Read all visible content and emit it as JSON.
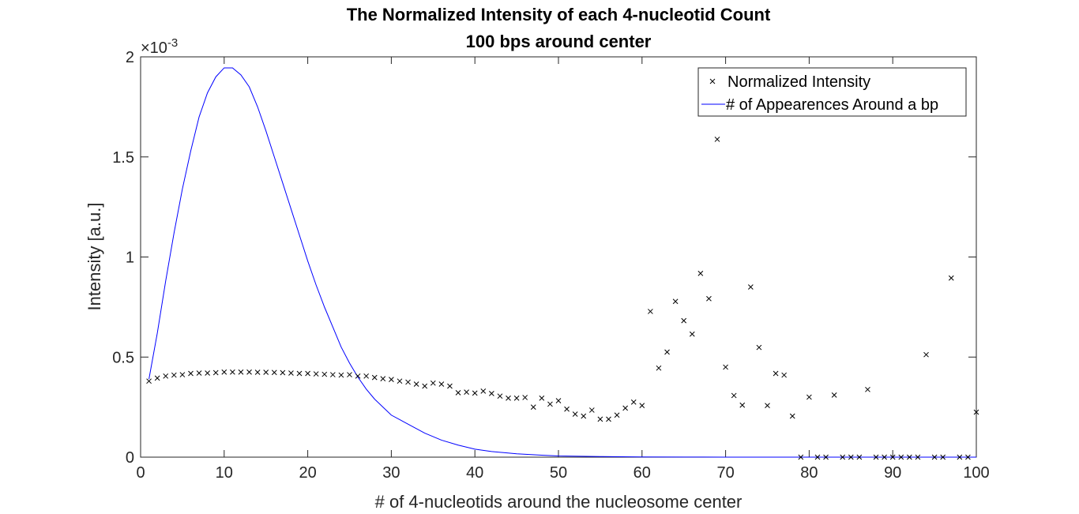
{
  "chart_data": {
    "type": "scatter",
    "title": [
      "The Normalized Intensity of each 4-nucleotid Count",
      "100 bps around center"
    ],
    "xlabel": "# of 4-nucleotids around the nucleosome center",
    "ylabel": "Intensity [a.u.]",
    "y_exponent_label": "×10",
    "y_exponent_power": "-3",
    "xlim": [
      0,
      100
    ],
    "ylim": [
      0,
      0.002
    ],
    "x_ticks": [
      0,
      10,
      20,
      30,
      40,
      50,
      60,
      70,
      80,
      90,
      100
    ],
    "x_tick_labels": [
      "0",
      "10",
      "20",
      "30",
      "40",
      "50",
      "60",
      "70",
      "80",
      "90",
      "100"
    ],
    "y_ticks": [
      0,
      0.0005,
      0.001,
      0.0015,
      0.002
    ],
    "y_tick_labels": [
      "0",
      "0.5",
      "1",
      "1.5",
      "2"
    ],
    "grid": false,
    "legend_position": "top-right",
    "series": [
      {
        "name": "Normalized Intensity",
        "type": "scatter",
        "marker": "x",
        "color": "#000000",
        "points": [
          [
            1,
            0.00038
          ],
          [
            2,
            0.000395
          ],
          [
            3,
            0.000405
          ],
          [
            4,
            0.00041
          ],
          [
            5,
            0.000412
          ],
          [
            6,
            0.000418
          ],
          [
            7,
            0.00042
          ],
          [
            8,
            0.00042
          ],
          [
            9,
            0.000422
          ],
          [
            10,
            0.000425
          ],
          [
            11,
            0.000425
          ],
          [
            12,
            0.000425
          ],
          [
            13,
            0.000425
          ],
          [
            14,
            0.000424
          ],
          [
            15,
            0.000424
          ],
          [
            16,
            0.000423
          ],
          [
            17,
            0.000422
          ],
          [
            18,
            0.00042
          ],
          [
            19,
            0.000418
          ],
          [
            20,
            0.000418
          ],
          [
            21,
            0.000416
          ],
          [
            22,
            0.000414
          ],
          [
            23,
            0.000412
          ],
          [
            24,
            0.00041
          ],
          [
            25,
            0.000412
          ],
          [
            26,
            0.000405
          ],
          [
            27,
            0.000405
          ],
          [
            28,
            0.000398
          ],
          [
            29,
            0.000392
          ],
          [
            30,
            0.000388
          ],
          [
            31,
            0.00038
          ],
          [
            32,
            0.000375
          ],
          [
            33,
            0.000365
          ],
          [
            34,
            0.000355
          ],
          [
            35,
            0.00037
          ],
          [
            36,
            0.000365
          ],
          [
            37,
            0.000355
          ],
          [
            38,
            0.000322
          ],
          [
            39,
            0.000325
          ],
          [
            40,
            0.00032
          ],
          [
            41,
            0.00033
          ],
          [
            42,
            0.000318
          ],
          [
            43,
            0.000305
          ],
          [
            44,
            0.000295
          ],
          [
            45,
            0.000295
          ],
          [
            46,
            0.000298
          ],
          [
            47,
            0.00025
          ],
          [
            48,
            0.000295
          ],
          [
            49,
            0.000265
          ],
          [
            50,
            0.000282
          ],
          [
            51,
            0.00024
          ],
          [
            52,
            0.000215
          ],
          [
            53,
            0.000205
          ],
          [
            54,
            0.000235
          ],
          [
            55,
            0.00019
          ],
          [
            56,
            0.00019
          ],
          [
            57,
            0.00021
          ],
          [
            58,
            0.000245
          ],
          [
            59,
            0.000275
          ],
          [
            60,
            0.000258
          ],
          [
            61,
            0.000728
          ],
          [
            62,
            0.000445
          ],
          [
            63,
            0.000525
          ],
          [
            64,
            0.000778
          ],
          [
            65,
            0.000682
          ],
          [
            66,
            0.000615
          ],
          [
            67,
            0.000918
          ],
          [
            68,
            0.000792
          ],
          [
            69,
            0.001588
          ],
          [
            70,
            0.00045
          ],
          [
            71,
            0.000308
          ],
          [
            72,
            0.00026
          ],
          [
            73,
            0.00085
          ],
          [
            74,
            0.000548
          ],
          [
            75,
            0.000258
          ],
          [
            76,
            0.000418
          ],
          [
            77,
            0.00041
          ],
          [
            78,
            0.000205
          ],
          [
            79,
            0
          ],
          [
            80,
            0.0003
          ],
          [
            81,
            0
          ],
          [
            82,
            0
          ],
          [
            83,
            0.00031
          ],
          [
            84,
            0
          ],
          [
            85,
            0
          ],
          [
            86,
            0
          ],
          [
            87,
            0.000338
          ],
          [
            88,
            0
          ],
          [
            89,
            0
          ],
          [
            90,
            0
          ],
          [
            91,
            0
          ],
          [
            92,
            0
          ],
          [
            93,
            0
          ],
          [
            94,
            0.000512
          ],
          [
            95,
            0
          ],
          [
            96,
            0
          ],
          [
            97,
            0.000895
          ],
          [
            98,
            0
          ],
          [
            99,
            0
          ],
          [
            100,
            0.000225
          ]
        ]
      },
      {
        "name": "# of Appearences Around a bp",
        "type": "line",
        "color": "#0000ff",
        "points": [
          [
            1,
            0.00039
          ],
          [
            2,
            0.00062
          ],
          [
            3,
            0.00088
          ],
          [
            4,
            0.00112
          ],
          [
            5,
            0.00134
          ],
          [
            6,
            0.00153
          ],
          [
            7,
            0.0017
          ],
          [
            8,
            0.00182
          ],
          [
            9,
            0.0019
          ],
          [
            10,
            0.001945
          ],
          [
            11,
            0.001945
          ],
          [
            12,
            0.00191
          ],
          [
            13,
            0.00185
          ],
          [
            14,
            0.00175
          ],
          [
            15,
            0.00163
          ],
          [
            16,
            0.0015
          ],
          [
            17,
            0.00137
          ],
          [
            18,
            0.00124
          ],
          [
            19,
            0.00111
          ],
          [
            20,
            0.00098
          ],
          [
            21,
            0.00086
          ],
          [
            22,
            0.00075
          ],
          [
            23,
            0.00065
          ],
          [
            24,
            0.00055
          ],
          [
            25,
            0.00047
          ],
          [
            26,
            0.0004
          ],
          [
            27,
            0.00034
          ],
          [
            28,
            0.00029
          ],
          [
            29,
            0.00025
          ],
          [
            30,
            0.00021
          ],
          [
            32,
            0.000165
          ],
          [
            34,
            0.00012
          ],
          [
            36,
            8.5e-05
          ],
          [
            38,
            6e-05
          ],
          [
            40,
            4e-05
          ],
          [
            42,
            2.8e-05
          ],
          [
            45,
            1.7e-05
          ],
          [
            48,
            1e-05
          ],
          [
            50,
            6e-06
          ],
          [
            55,
            3e-06
          ],
          [
            60,
            1e-06
          ],
          [
            65,
            5e-07
          ],
          [
            70,
            2e-07
          ],
          [
            80,
            0
          ],
          [
            90,
            0
          ],
          [
            100,
            0
          ]
        ]
      }
    ]
  }
}
